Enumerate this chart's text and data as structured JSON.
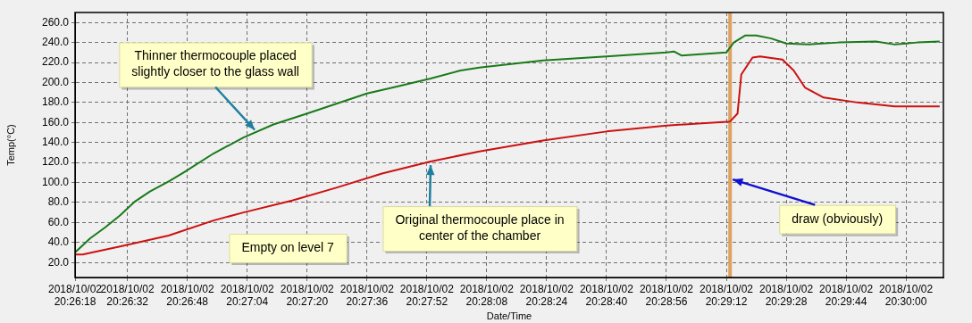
{
  "chart_data": {
    "type": "line",
    "xlabel": "Date/Time",
    "ylabel": "Temp(°C)",
    "grid": true,
    "legend": false,
    "marker": "none",
    "line_style": "solid",
    "xlim": [
      "2018-10-02T20:26:18",
      "2018-10-02T20:30:10"
    ],
    "ylim": [
      5,
      270
    ],
    "xticks": [
      {
        "value": "2018-10-02T20:26:18",
        "label": "2018/10/02 20:26:18"
      },
      {
        "value": "2018-10-02T20:26:32",
        "label": "2018/10/02 20:26:32"
      },
      {
        "value": "2018-10-02T20:26:48",
        "label": "2018/10/02 20:26:48"
      },
      {
        "value": "2018-10-02T20:27:04",
        "label": "2018/10/02 20:27:04"
      },
      {
        "value": "2018-10-02T20:27:20",
        "label": "2018/10/02 20:27:20"
      },
      {
        "value": "2018-10-02T20:27:36",
        "label": "2018/10/02 20:27:36"
      },
      {
        "value": "2018-10-02T20:27:52",
        "label": "2018/10/02 20:27:52"
      },
      {
        "value": "2018-10-02T20:28:08",
        "label": "2018/10/02 20:28:08"
      },
      {
        "value": "2018-10-02T20:28:24",
        "label": "2018/10/02 20:28:24"
      },
      {
        "value": "2018-10-02T20:28:40",
        "label": "2018/10/02 20:28:40"
      },
      {
        "value": "2018-10-02T20:28:56",
        "label": "2018/10/02 20:28:56"
      },
      {
        "value": "2018-10-02T20:29:12",
        "label": "2018/10/02 20:29:12"
      },
      {
        "value": "2018-10-02T20:29:28",
        "label": "2018/10/02 20:29:28"
      },
      {
        "value": "2018-10-02T20:29:44",
        "label": "2018/10/02 20:29:44"
      },
      {
        "value": "2018-10-02T20:30:00",
        "label": "2018/10/02 20:30:00"
      }
    ],
    "yticks": [
      {
        "value": 20,
        "label": "20.0"
      },
      {
        "value": 40,
        "label": "40.0"
      },
      {
        "value": 60,
        "label": "60.0"
      },
      {
        "value": 80,
        "label": "80.0"
      },
      {
        "value": 100,
        "label": "100.0"
      },
      {
        "value": 120,
        "label": "120.0"
      },
      {
        "value": 140,
        "label": "140.0"
      },
      {
        "value": 160,
        "label": "160.0"
      },
      {
        "value": 180,
        "label": "180.0"
      },
      {
        "value": 200,
        "label": "200.0"
      },
      {
        "value": 220,
        "label": "220.0"
      },
      {
        "value": 240,
        "label": "240.0"
      },
      {
        "value": 260,
        "label": "260.0"
      }
    ],
    "series": [
      {
        "color": "#1a7a1a",
        "x": [
          "2018-10-02T20:26:18",
          "2018-10-02T20:26:22",
          "2018-10-02T20:26:26",
          "2018-10-02T20:26:30",
          "2018-10-02T20:26:34",
          "2018-10-02T20:26:38",
          "2018-10-02T20:26:43",
          "2018-10-02T20:26:47",
          "2018-10-02T20:26:55",
          "2018-10-02T20:27:03",
          "2018-10-02T20:27:11",
          "2018-10-02T20:27:20",
          "2018-10-02T20:27:28",
          "2018-10-02T20:27:36",
          "2018-10-02T20:27:44",
          "2018-10-02T20:27:53",
          "2018-10-02T20:28:01",
          "2018-10-02T20:28:06",
          "2018-10-02T20:28:23",
          "2018-10-02T20:28:40",
          "2018-10-02T20:28:56",
          "2018-10-02T20:28:58",
          "2018-10-02T20:29:00",
          "2018-10-02T20:29:12",
          "2018-10-02T20:29:14",
          "2018-10-02T20:29:17",
          "2018-10-02T20:29:20",
          "2018-10-02T20:29:24",
          "2018-10-02T20:29:28",
          "2018-10-02T20:29:34",
          "2018-10-02T20:29:42",
          "2018-10-02T20:29:52",
          "2018-10-02T20:29:57",
          "2018-10-02T20:30:03",
          "2018-10-02T20:30:09"
        ],
        "values": [
          30,
          44,
          55,
          67,
          81,
          91,
          101,
          110,
          129,
          145,
          158,
          169,
          179,
          189,
          196,
          204,
          212,
          215,
          222,
          226,
          230,
          231,
          227,
          230,
          240,
          247,
          247,
          244,
          239,
          238,
          240,
          241,
          238,
          240,
          241
        ]
      },
      {
        "color": "#cc1111",
        "x": [
          "2018-10-02T20:26:18",
          "2018-10-02T20:26:20",
          "2018-10-02T20:26:30",
          "2018-10-02T20:26:43",
          "2018-10-02T20:26:55",
          "2018-10-02T20:27:03",
          "2018-10-02T20:27:16",
          "2018-10-02T20:27:28",
          "2018-10-02T20:27:40",
          "2018-10-02T20:27:53",
          "2018-10-02T20:28:06",
          "2018-10-02T20:28:23",
          "2018-10-02T20:28:40",
          "2018-10-02T20:28:56",
          "2018-10-02T20:29:13",
          "2018-10-02T20:29:15",
          "2018-10-02T20:29:16",
          "2018-10-02T20:29:19",
          "2018-10-02T20:29:21",
          "2018-10-02T20:29:27",
          "2018-10-02T20:29:30",
          "2018-10-02T20:29:33",
          "2018-10-02T20:29:38",
          "2018-10-02T20:29:47",
          "2018-10-02T20:29:57",
          "2018-10-02T20:30:09"
        ],
        "values": [
          28,
          28,
          36,
          47,
          62,
          70,
          82,
          95,
          109,
          121,
          131,
          142,
          151,
          157,
          161,
          169,
          208,
          225,
          226,
          223,
          212,
          195,
          185,
          180,
          176,
          176
        ]
      }
    ],
    "ref_lines": [
      {
        "axis": "x",
        "value": "2018-10-02T20:29:13",
        "label": "draw (obviously)",
        "color": "#e0a060"
      }
    ],
    "annotations": [
      {
        "text": "Thinner thermocouple placed slightly closer to the glass wall",
        "x": "2018-10-02T20:27:06",
        "y": 150
      },
      "Empty on level 7",
      {
        "text": "Original thermocouple place in center of the chamber",
        "x": "2018-10-02T20:27:53",
        "y": 120
      }
    ]
  }
}
